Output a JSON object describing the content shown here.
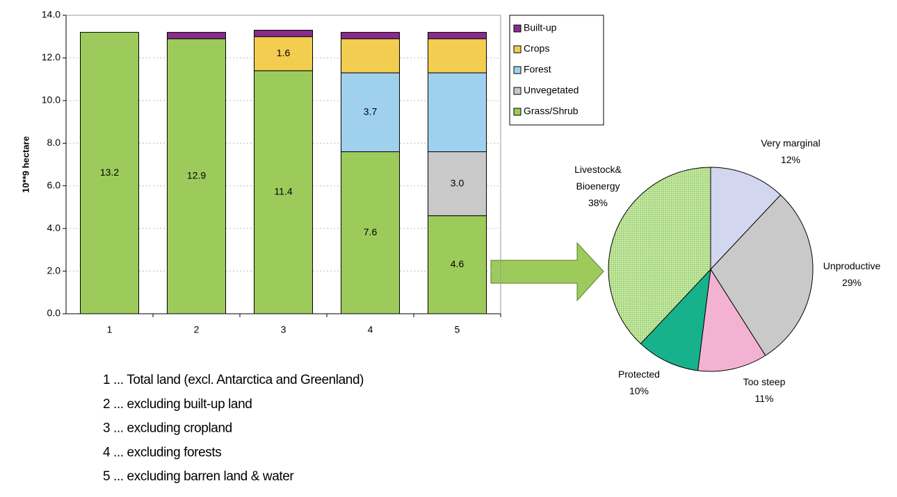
{
  "chart_data": [
    {
      "type": "stacked_bar",
      "ylabel": "10**9 hectare",
      "categories": [
        "1",
        "2",
        "3",
        "4",
        "5"
      ],
      "series": [
        {
          "name": "Grass/Shrub",
          "color": "#9dcb5b",
          "values": [
            13.2,
            12.9,
            11.4,
            7.6,
            4.6
          ],
          "value_labels": [
            "13.2",
            "12.9",
            "11.4",
            "7.6",
            "4.6"
          ]
        },
        {
          "name": "Unvegetated",
          "color": "#c9c9c9",
          "values": [
            null,
            null,
            null,
            null,
            3.0
          ],
          "value_labels": [
            null,
            null,
            null,
            null,
            "3.0"
          ]
        },
        {
          "name": "Forest",
          "color": "#9fd1ef",
          "values": [
            null,
            null,
            null,
            3.7,
            3.7
          ],
          "value_labels": [
            null,
            null,
            null,
            "3.7",
            null
          ]
        },
        {
          "name": "Crops",
          "color": "#f2cd50",
          "values": [
            null,
            null,
            1.6,
            1.6,
            1.6
          ],
          "value_labels": [
            null,
            null,
            "1.6",
            null,
            null
          ]
        },
        {
          "name": "Built-up",
          "color": "#8a2c8c",
          "values": [
            null,
            0.3,
            0.3,
            0.3,
            0.3
          ]
        }
      ],
      "ylim": [
        0,
        14
      ],
      "yticks": [
        {
          "value": 0,
          "label": "0.0"
        },
        {
          "value": 2,
          "label": "2.0"
        },
        {
          "value": 4,
          "label": "4.0"
        },
        {
          "value": 6,
          "label": "6.0"
        },
        {
          "value": 8,
          "label": "8.0"
        },
        {
          "value": 10,
          "label": "10.0"
        },
        {
          "value": 12,
          "label": "12.0"
        },
        {
          "value": 14,
          "label": "14.0"
        }
      ],
      "grid": true,
      "legend": "right",
      "notes": [
        "1 ... Total land (excl. Antarctica and Greenland)",
        "2 ... excluding built-up land",
        "3 ... excluding cropland",
        "4 ... excluding forests",
        "5 ... excluding barren land & water"
      ]
    },
    {
      "type": "pie",
      "labels": [
        "Very marginal",
        "Unproductive",
        "Too steep",
        "Protected",
        "Livestock&\nBioenergy"
      ],
      "values": [
        12,
        29,
        11,
        10,
        38
      ],
      "value_labels": [
        "12%",
        "29%",
        "11%",
        "10%",
        "38%"
      ],
      "colors": [
        "#d2d6ee",
        "#c9c9c9",
        "#f4b2d2",
        "#17b28c",
        "#a8d87c"
      ]
    }
  ]
}
